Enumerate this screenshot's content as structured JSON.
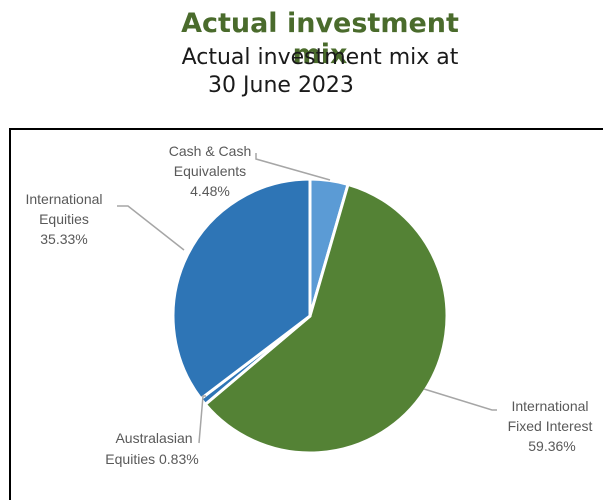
{
  "chart_data": {
    "type": "pie",
    "title": "Actual investment mix",
    "subtitle_lines": [
      "Actual investment mix at",
      "30 June 2023"
    ],
    "slices": [
      {
        "name_lines": [
          "Cash & Cash",
          "Equivalents"
        ],
        "value_label": "4.48%",
        "value": 4.48,
        "color": "#5b9bd5"
      },
      {
        "name_lines": [
          "International",
          "Fixed Interest"
        ],
        "value_label": "59.36%",
        "value": 59.36,
        "color": "#548235"
      },
      {
        "name_lines": [
          "Australasian",
          "Equities 0.83%"
        ],
        "value_label": "",
        "value": 0.83,
        "color": "#2e75b6"
      },
      {
        "name_lines": [
          "International",
          "Equities"
        ],
        "value_label": "35.33%",
        "value": 35.33,
        "color": "#2e75b6"
      }
    ]
  },
  "colors": {
    "title": "#4a6b2c",
    "label_text": "#595959",
    "leader_line": "#a6a6a6"
  }
}
